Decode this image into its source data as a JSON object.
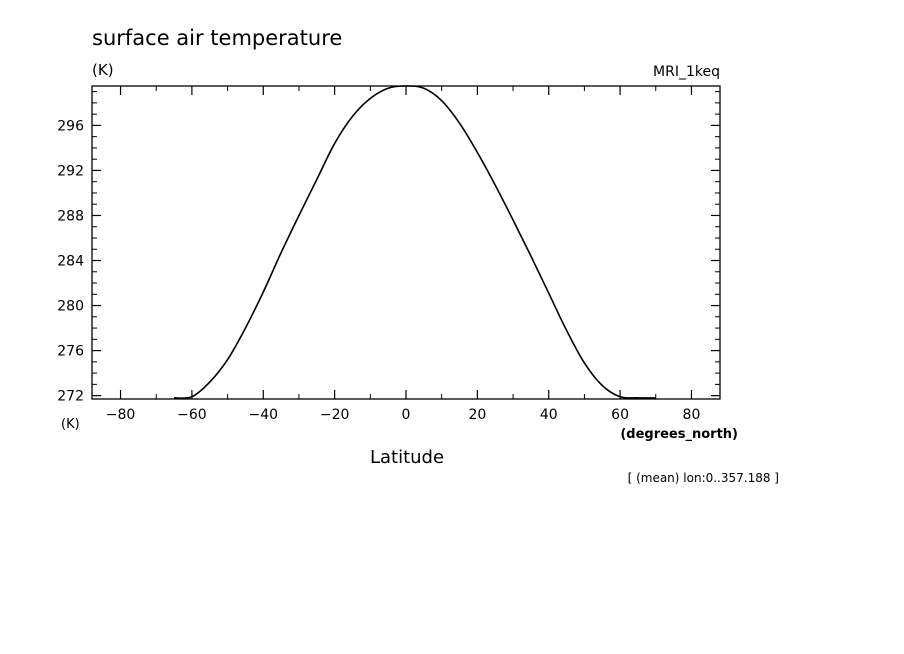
{
  "chart_data": {
    "type": "line",
    "title": "surface air temperature",
    "ylabel": "(K)",
    "xlabel": "Latitude",
    "x_unit": "(degrees_north)",
    "x_corner_label": "(K)",
    "model": "MRI_1keq",
    "note": "[ (mean) lon:0..357.188 ]",
    "xlim": [
      -88,
      88
    ],
    "ylim": [
      271.7,
      299.5
    ],
    "x_ticks": [
      -80,
      -60,
      -40,
      -20,
      0,
      20,
      40,
      60,
      80
    ],
    "x_tick_labels": [
      "−80",
      "−60",
      "−40",
      "−20",
      "0",
      "20",
      "40",
      "60",
      "80"
    ],
    "y_ticks": [
      272,
      276,
      280,
      284,
      288,
      292,
      296
    ],
    "y_tick_labels": [
      "272",
      "276",
      "280",
      "284",
      "288",
      "292",
      "296"
    ],
    "grid": false,
    "legend": "none",
    "series": [
      {
        "color": "#000000",
        "x": [
          -65,
          -60,
          -55,
          -50,
          -45,
          -40,
          -35,
          -30,
          -25,
          -20,
          -15,
          -10,
          -5,
          0,
          5,
          10,
          15,
          20,
          25,
          30,
          35,
          40,
          45,
          50,
          55,
          60,
          65,
          70
        ],
        "y": [
          271.8,
          271.9,
          273.2,
          275.2,
          278.0,
          281.2,
          284.7,
          288.0,
          291.2,
          294.4,
          296.8,
          298.4,
          299.3,
          299.5,
          299.3,
          298.2,
          296.2,
          293.6,
          290.7,
          287.6,
          284.4,
          281.1,
          277.8,
          274.9,
          272.9,
          271.9,
          271.8,
          271.8
        ]
      }
    ]
  }
}
